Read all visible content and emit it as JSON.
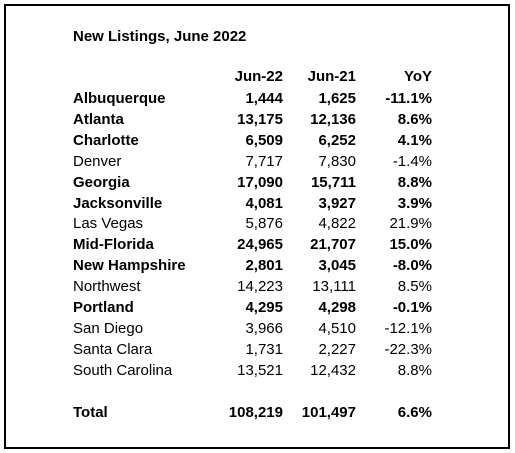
{
  "title": "New Listings, June 2022",
  "table": {
    "header": [
      "Jun-22",
      "Jun-21",
      "YoY"
    ],
    "rows": [
      {
        "name": "Albuquerque",
        "cells": [
          "1,444",
          "1,625",
          "-11.1%"
        ],
        "bold": true
      },
      {
        "name": "Atlanta",
        "cells": [
          "13,175",
          "12,136",
          "8.6%"
        ],
        "bold": true
      },
      {
        "name": "Charlotte",
        "cells": [
          "6,509",
          "6,252",
          "4.1%"
        ],
        "bold": true
      },
      {
        "name": "Denver",
        "cells": [
          "7,717",
          "7,830",
          "-1.4%"
        ],
        "bold": false
      },
      {
        "name": "Georgia",
        "cells": [
          "17,090",
          "15,711",
          "8.8%"
        ],
        "bold": true
      },
      {
        "name": "Jacksonville",
        "cells": [
          "4,081",
          "3,927",
          "3.9%"
        ],
        "bold": true
      },
      {
        "name": "Las Vegas",
        "cells": [
          "5,876",
          "4,822",
          "21.9%"
        ],
        "bold": false
      },
      {
        "name": "Mid-Florida",
        "cells": [
          "24,965",
          "21,707",
          "15.0%"
        ],
        "bold": true
      },
      {
        "name": "New Hampshire",
        "cells": [
          "2,801",
          "3,045",
          "-8.0%"
        ],
        "bold": true
      },
      {
        "name": "Northwest",
        "cells": [
          "14,223",
          "13,111",
          "8.5%"
        ],
        "bold": false
      },
      {
        "name": "Portland",
        "cells": [
          "4,295",
          "4,298",
          "-0.1%"
        ],
        "bold": true
      },
      {
        "name": "San Diego",
        "cells": [
          "3,966",
          "4,510",
          "-12.1%"
        ],
        "bold": false
      },
      {
        "name": "Santa Clara",
        "cells": [
          "1,731",
          "2,227",
          "-22.3%"
        ],
        "bold": false
      },
      {
        "name": "South Carolina",
        "cells": [
          "13,521",
          "12,432",
          "8.8%"
        ],
        "bold": false
      }
    ],
    "total": {
      "name": "Total",
      "cells": [
        "108,219",
        "101,497",
        "6.6%"
      ],
      "bold": true
    }
  }
}
